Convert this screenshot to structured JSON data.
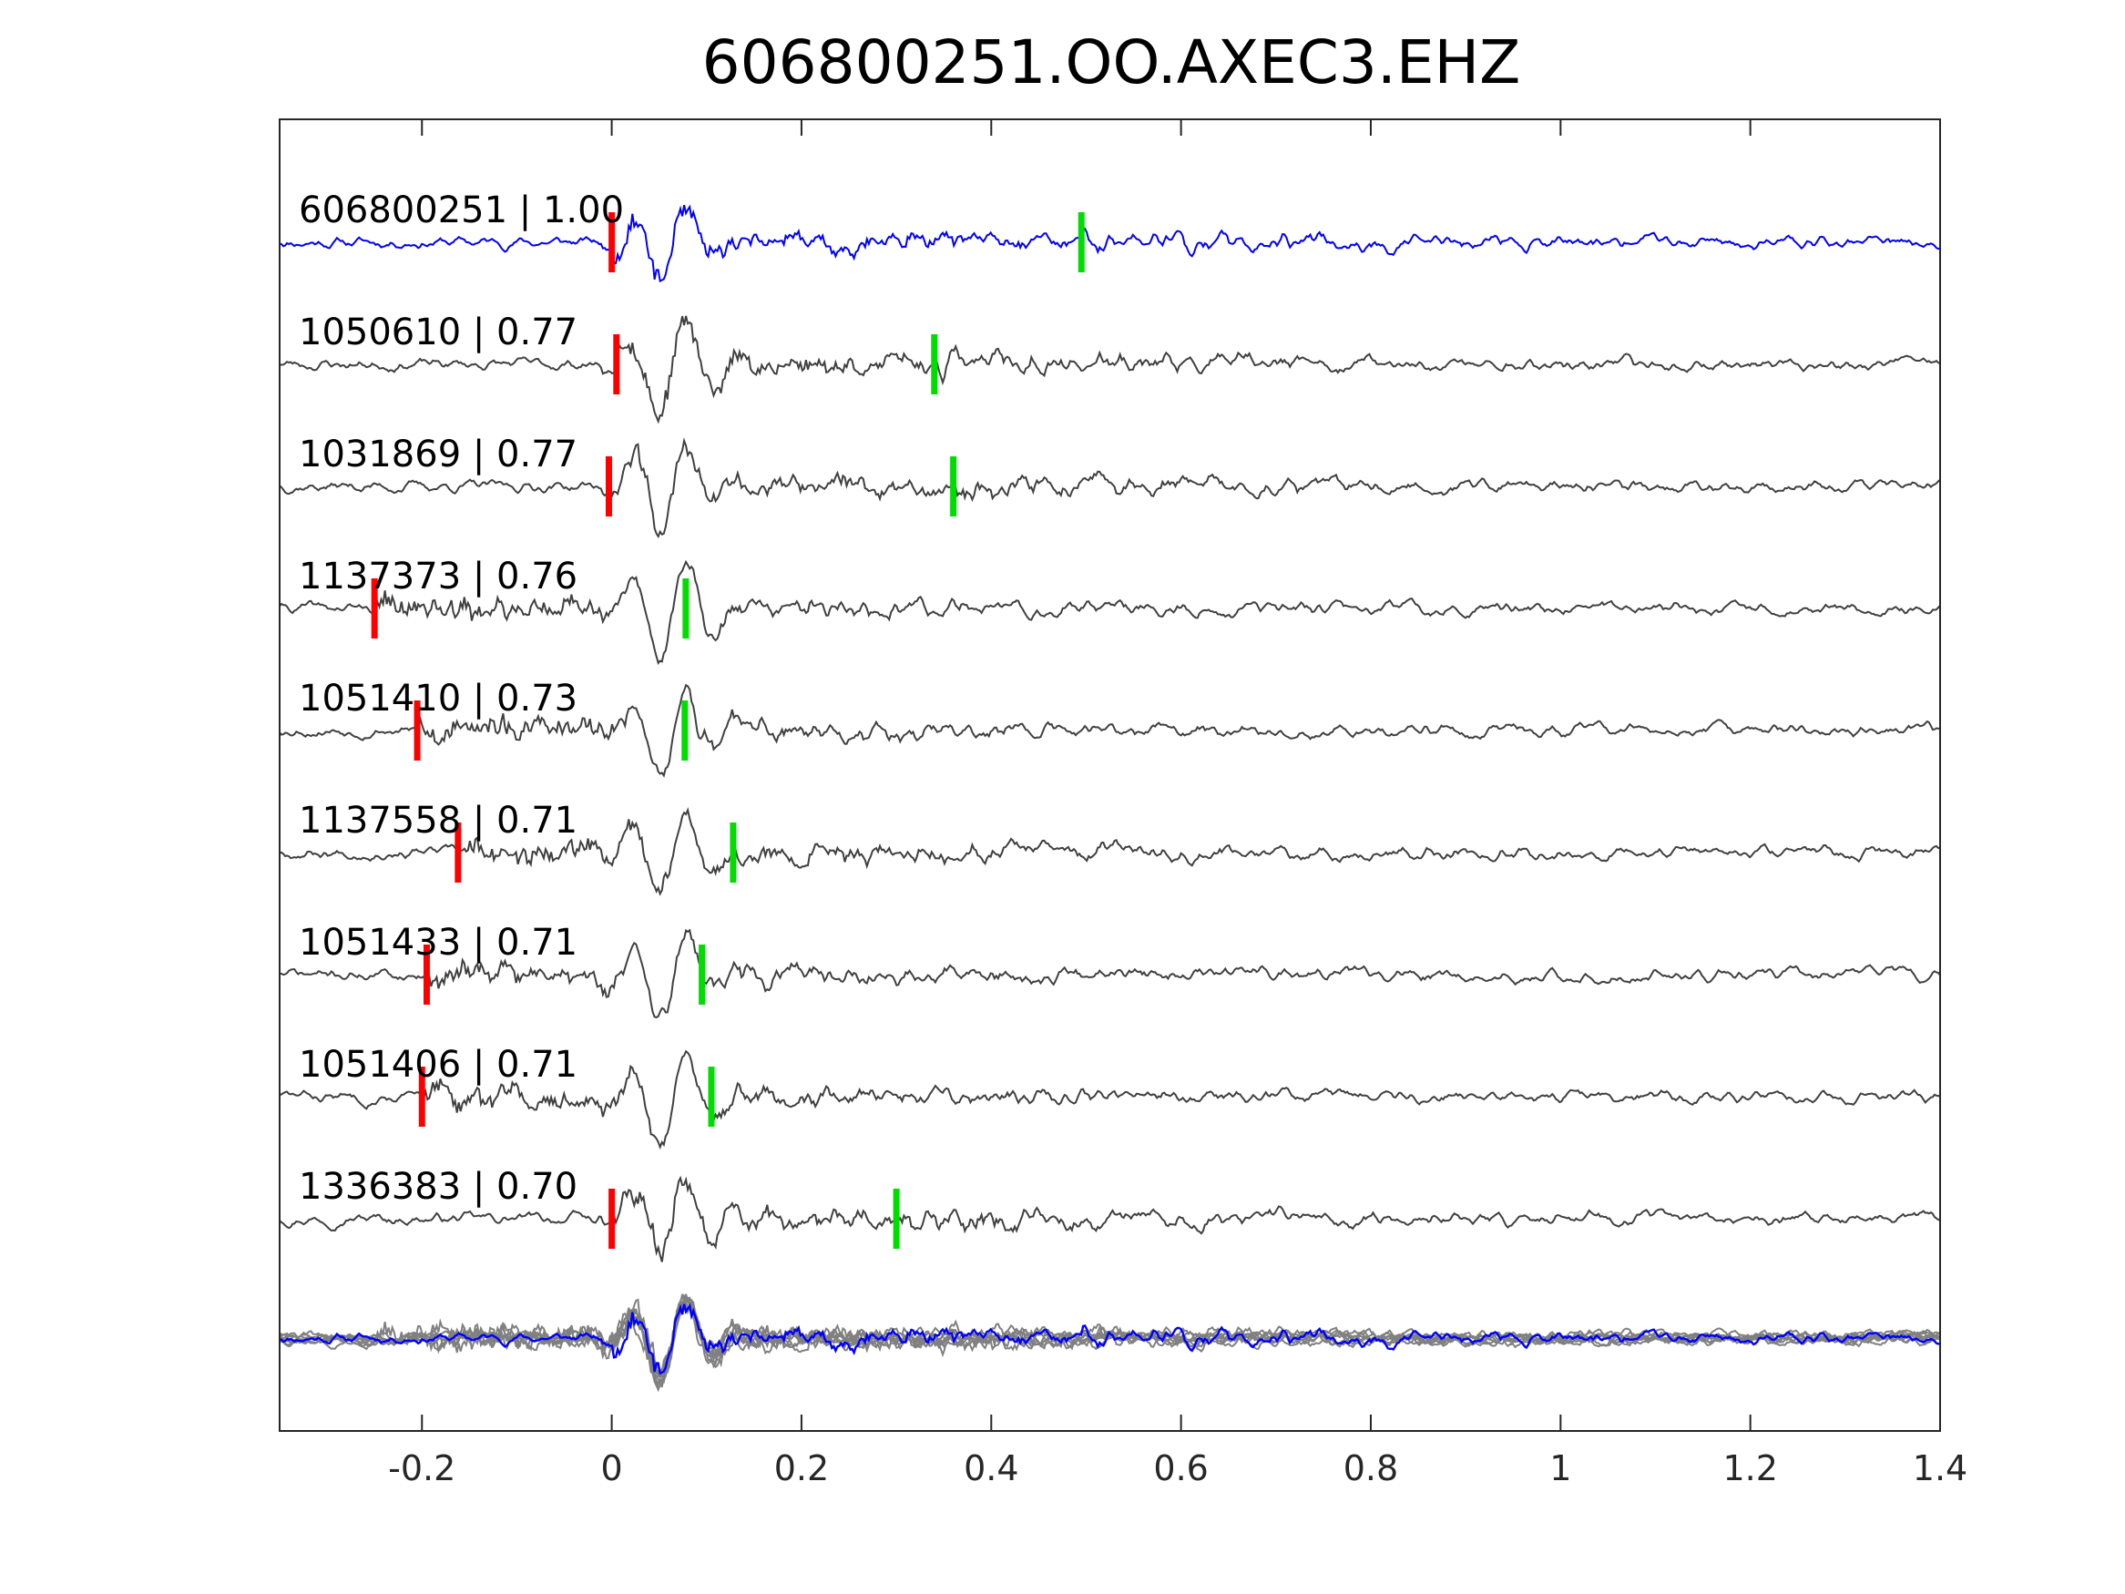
{
  "chart_data": {
    "type": "line",
    "title": "606800251.OO.AXEC3.EHZ",
    "xlabel": "",
    "ylabel": "",
    "xlim": [
      -0.35,
      1.4
    ],
    "x_ticks": [
      {
        "value": -0.2,
        "label": "-0.2"
      },
      {
        "value": 0,
        "label": "0"
      },
      {
        "value": 0.2,
        "label": "0.2"
      },
      {
        "value": 0.4,
        "label": "0.4"
      },
      {
        "value": 0.6,
        "label": "0.6"
      },
      {
        "value": 0.8,
        "label": "0.8"
      },
      {
        "value": 1,
        "label": "1"
      },
      {
        "value": 1.2,
        "label": "1.2"
      },
      {
        "value": 1.4,
        "label": "1.4"
      }
    ],
    "grid": false,
    "colors": {
      "template_trace": "#0000ff",
      "neighbor_trace": "#404040",
      "stack_trace": "#808080",
      "p_pick": "#ff0000",
      "s_pick": "#00dd00"
    },
    "series": [
      {
        "label": "606800251 | 1.00",
        "p_pick": 0.0,
        "s_pick": 0.495,
        "seed": 11,
        "template": true
      },
      {
        "label": "1050610 | 0.77",
        "p_pick": 0.005,
        "s_pick": 0.34,
        "seed": 23
      },
      {
        "label": "1031869 | 0.77",
        "p_pick": -0.003,
        "s_pick": 0.36,
        "seed": 37
      },
      {
        "label": "1137373 | 0.76",
        "p_pick": -0.25,
        "s_pick": 0.078,
        "seed": 41
      },
      {
        "label": "1051410 | 0.73",
        "p_pick": -0.205,
        "s_pick": 0.077,
        "seed": 53
      },
      {
        "label": "1137558 | 0.71",
        "p_pick": -0.162,
        "s_pick": 0.128,
        "seed": 67
      },
      {
        "label": "1051433 | 0.71",
        "p_pick": -0.195,
        "s_pick": 0.095,
        "seed": 71
      },
      {
        "label": "1051406 | 0.71",
        "p_pick": -0.2,
        "s_pick": 0.105,
        "seed": 83
      },
      {
        "label": "1336383 | 0.70",
        "p_pick": 0.0,
        "s_pick": 0.3,
        "seed": 97
      }
    ]
  }
}
